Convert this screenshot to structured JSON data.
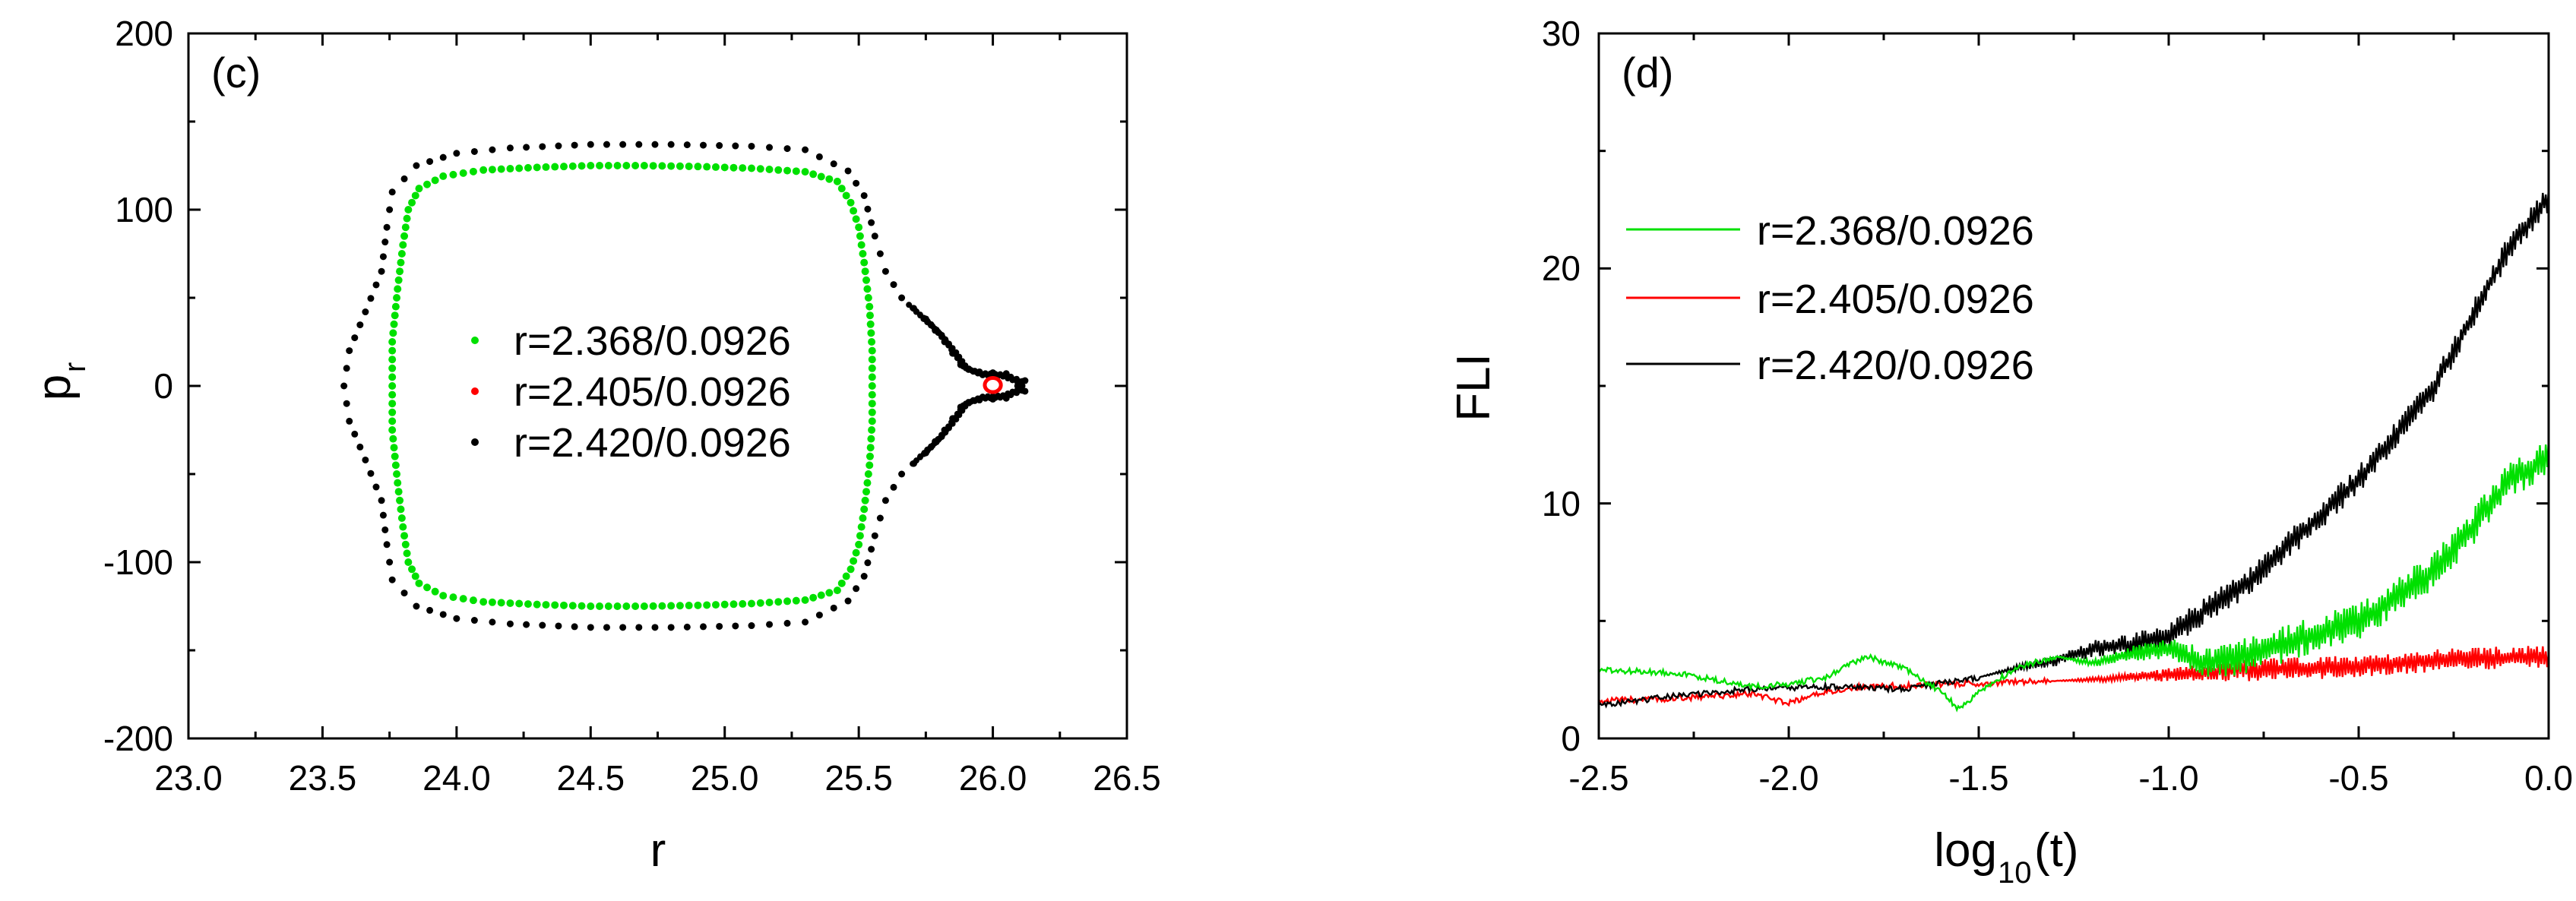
{
  "chart_data": [
    {
      "type": "scatter",
      "panel_label": "(c)",
      "xlabel": "r",
      "ylabel": "p",
      "ylabel_subscript": "r",
      "xlim": [
        23.0,
        26.5
      ],
      "ylim": [
        -200,
        200
      ],
      "xticks": [
        23.0,
        23.5,
        24.0,
        24.5,
        25.0,
        25.5,
        26.0,
        26.5
      ],
      "xtick_labels": [
        "23.0",
        "23.5",
        "24.0",
        "24.5",
        "25.0",
        "25.5",
        "26.0",
        "26.5"
      ],
      "yticks": [
        -200,
        -100,
        0,
        100,
        200
      ],
      "ytick_labels": [
        "-200",
        "-100",
        "0",
        "100",
        "200"
      ],
      "legend_position": "center",
      "series": [
        {
          "name": "r=2.368/0.0926",
          "color": "#00e000",
          "marker": "dot",
          "outline": [
            [
              23.82,
              100
            ],
            [
              23.86,
              112
            ],
            [
              23.95,
              119
            ],
            [
              24.1,
              122.5
            ],
            [
              24.3,
              124
            ],
            [
              24.5,
              125
            ],
            [
              24.7,
              125
            ],
            [
              24.9,
              124.5
            ],
            [
              25.1,
              123.5
            ],
            [
              25.3,
              121.5
            ],
            [
              25.42,
              116
            ],
            [
              25.47,
              104
            ],
            [
              25.5,
              90
            ],
            [
              25.52,
              70
            ],
            [
              25.54,
              45
            ],
            [
              25.55,
              20
            ],
            [
              25.55,
              0
            ],
            [
              25.55,
              -20
            ],
            [
              25.54,
              -45
            ],
            [
              25.52,
              -70
            ],
            [
              25.5,
              -90
            ],
            [
              25.47,
              -104
            ],
            [
              25.42,
              -116
            ],
            [
              25.3,
              -121.5
            ],
            [
              25.1,
              -123.5
            ],
            [
              24.9,
              -124.5
            ],
            [
              24.7,
              -125
            ],
            [
              24.5,
              -125
            ],
            [
              24.3,
              -124
            ],
            [
              24.1,
              -122.5
            ],
            [
              23.95,
              -119
            ],
            [
              23.86,
              -112
            ],
            [
              23.82,
              -100
            ],
            [
              23.8,
              -80
            ],
            [
              23.78,
              -55
            ],
            [
              23.76,
              -25
            ],
            [
              23.76,
              0
            ],
            [
              23.76,
              25
            ],
            [
              23.78,
              55
            ],
            [
              23.8,
              80
            ],
            [
              23.82,
              100
            ]
          ]
        },
        {
          "name": "r=2.405/0.0926",
          "color": "#ff0000",
          "marker": "ring",
          "center": [
            26.0,
            0.5
          ],
          "radius": [
            0.03,
            4
          ]
        },
        {
          "name": "r=2.420/0.0926",
          "color": "#000000",
          "marker": "dot",
          "outline": [
            [
              23.76,
              110
            ],
            [
              23.85,
              125
            ],
            [
              24.0,
              132
            ],
            [
              24.2,
              135
            ],
            [
              24.5,
              137
            ],
            [
              24.8,
              137
            ],
            [
              25.1,
              136
            ],
            [
              25.3,
              134
            ],
            [
              25.46,
              122
            ],
            [
              25.52,
              108
            ],
            [
              25.56,
              85
            ],
            [
              25.6,
              65
            ],
            [
              25.66,
              50
            ],
            [
              25.75,
              38
            ],
            [
              25.82,
              25
            ],
            [
              25.88,
              12
            ],
            [
              25.95,
              8
            ],
            [
              26.05,
              7
            ],
            [
              26.12,
              3
            ],
            [
              26.12,
              -3
            ],
            [
              26.05,
              -7
            ],
            [
              25.95,
              -8
            ],
            [
              25.88,
              -12
            ],
            [
              25.82,
              -25
            ],
            [
              25.75,
              -38
            ],
            [
              25.66,
              -50
            ],
            [
              25.6,
              -65
            ],
            [
              25.56,
              -85
            ],
            [
              25.52,
              -108
            ],
            [
              25.46,
              -122
            ],
            [
              25.3,
              -134
            ],
            [
              25.1,
              -136
            ],
            [
              24.8,
              -137
            ],
            [
              24.5,
              -137
            ],
            [
              24.2,
              -135
            ],
            [
              24.0,
              -132
            ],
            [
              23.85,
              -125
            ],
            [
              23.76,
              -110
            ],
            [
              23.74,
              -90
            ],
            [
              23.72,
              -65
            ],
            [
              23.66,
              -42
            ],
            [
              23.6,
              -20
            ],
            [
              23.58,
              0
            ],
            [
              23.6,
              20
            ],
            [
              23.66,
              42
            ],
            [
              23.72,
              65
            ],
            [
              23.74,
              90
            ],
            [
              23.76,
              110
            ]
          ]
        }
      ]
    },
    {
      "type": "line",
      "panel_label": "(d)",
      "xlabel": "log",
      "xlabel_subscript": "10",
      "xlabel_suffix": "(t)",
      "ylabel": "FLI",
      "xlim": [
        -2.5,
        0.0
      ],
      "ylim": [
        0,
        30
      ],
      "xticks": [
        -2.5,
        -2.0,
        -1.5,
        -1.0,
        -0.5,
        0.0
      ],
      "xtick_labels": [
        "-2.5",
        "-2.0",
        "-1.5",
        "-1.0",
        "-0.5",
        "0.0"
      ],
      "yticks": [
        0,
        10,
        20,
        30
      ],
      "ytick_labels": [
        "0",
        "10",
        "20",
        "30"
      ],
      "legend_position": "upper-left",
      "series": [
        {
          "name": "r=2.368/0.0926",
          "color": "#00e000",
          "x": [
            -2.5,
            -2.3,
            -2.1,
            -2.0,
            -1.9,
            -1.8,
            -1.7,
            -1.6,
            -1.55,
            -1.5,
            -1.4,
            -1.3,
            -1.2,
            -1.1,
            -1.0,
            -0.9,
            -0.8,
            -0.7,
            -0.6,
            -0.5,
            -0.4,
            -0.3,
            -0.2,
            -0.1,
            0.0
          ],
          "values": [
            2.9,
            2.8,
            2.2,
            2.3,
            2.6,
            3.5,
            3.0,
            2.0,
            1.2,
            2.0,
            3.0,
            3.5,
            3.2,
            3.6,
            3.8,
            3.2,
            3.5,
            4.0,
            4.5,
            5.0,
            6.0,
            7.2,
            9.0,
            11.0,
            12.0
          ],
          "oscillation": 1.6,
          "oscillation_start": -1.3
        },
        {
          "name": "r=2.405/0.0926",
          "color": "#ff0000",
          "x": [
            -2.5,
            -2.3,
            -2.1,
            -2.0,
            -1.9,
            -1.8,
            -1.6,
            -1.4,
            -1.2,
            -1.0,
            -0.8,
            -0.6,
            -0.4,
            -0.2,
            0.0
          ],
          "values": [
            1.6,
            1.7,
            1.9,
            1.5,
            2.0,
            2.2,
            2.3,
            2.4,
            2.5,
            2.7,
            2.9,
            3.0,
            3.2,
            3.4,
            3.5
          ],
          "oscillation": 0.8,
          "oscillation_start": -1.3
        },
        {
          "name": "r=2.420/0.0926",
          "color": "#000000",
          "x": [
            -2.5,
            -2.3,
            -2.1,
            -1.9,
            -1.7,
            -1.5,
            -1.4,
            -1.3,
            -1.2,
            -1.1,
            -1.0,
            -0.9,
            -0.8,
            -0.7,
            -0.6,
            -0.5,
            -0.4,
            -0.3,
            -0.2,
            -0.1,
            0.0
          ],
          "values": [
            1.4,
            1.8,
            2.1,
            2.2,
            2.1,
            2.6,
            3.0,
            3.3,
            3.8,
            4.0,
            4.3,
            5.5,
            6.5,
            8.0,
            9.5,
            11.0,
            13.0,
            15.0,
            18.0,
            21.0,
            23.0
          ],
          "oscillation": 1.2,
          "oscillation_start": -1.5
        }
      ]
    }
  ]
}
